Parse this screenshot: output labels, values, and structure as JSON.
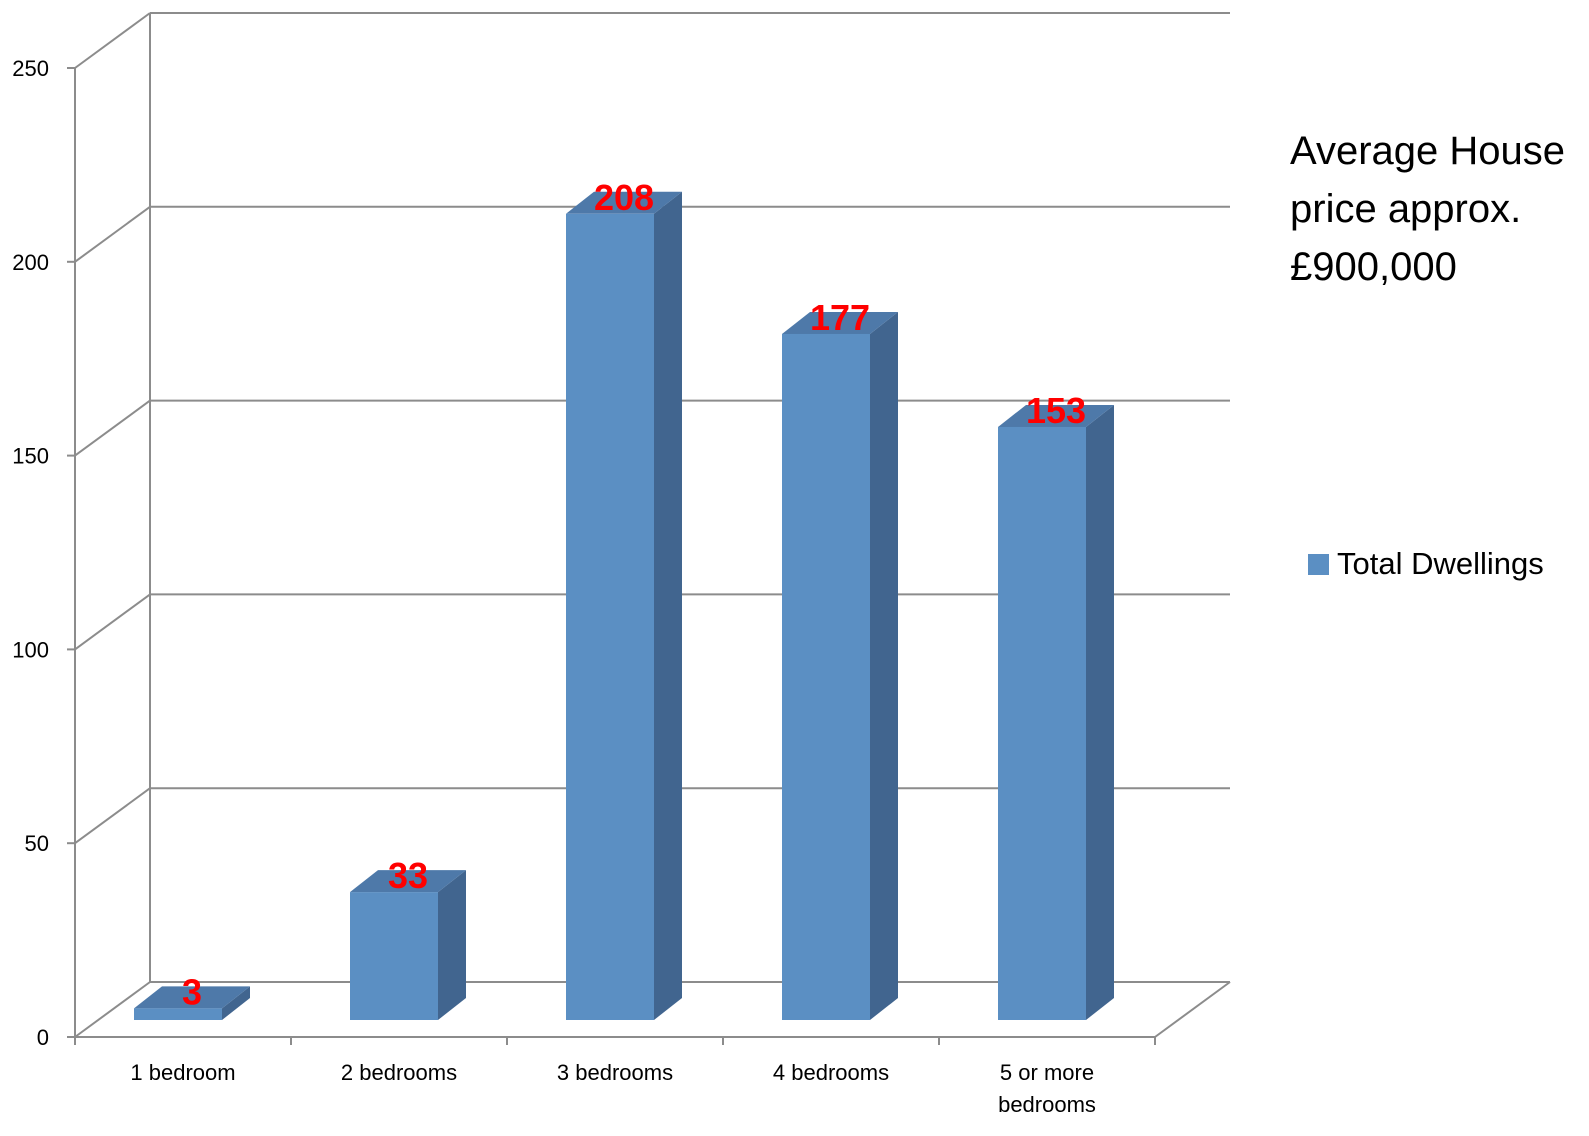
{
  "colors": {
    "bar_front": "#5B8FC3",
    "bar_side": "#41658F",
    "bar_top": "#4E79A9",
    "data_label": "#FF0000",
    "grid": "#8C8C8C"
  },
  "annotation": {
    "lines": [
      "Average House",
      "price approx.",
      "£900,000"
    ]
  },
  "chart_data": {
    "type": "bar",
    "categories": [
      "1 bedroom",
      "2 bedrooms",
      "3 bedrooms",
      "4 bedrooms",
      "5 or more bedrooms"
    ],
    "category_lines": [
      [
        "1 bedroom"
      ],
      [
        "2 bedrooms"
      ],
      [
        "3 bedrooms"
      ],
      [
        "4 bedrooms"
      ],
      [
        "5 or more",
        "bedrooms"
      ]
    ],
    "series": [
      {
        "name": "Total Dwellings",
        "values": [
          3,
          33,
          208,
          177,
          153
        ]
      }
    ],
    "data_labels": [
      "3",
      "33",
      "208",
      "177",
      "153"
    ],
    "ylim": [
      0,
      250
    ],
    "yticks": [
      "0",
      "50",
      "100",
      "150",
      "200",
      "250"
    ],
    "grid": true,
    "legend_position": "right",
    "style": "3d-column"
  }
}
